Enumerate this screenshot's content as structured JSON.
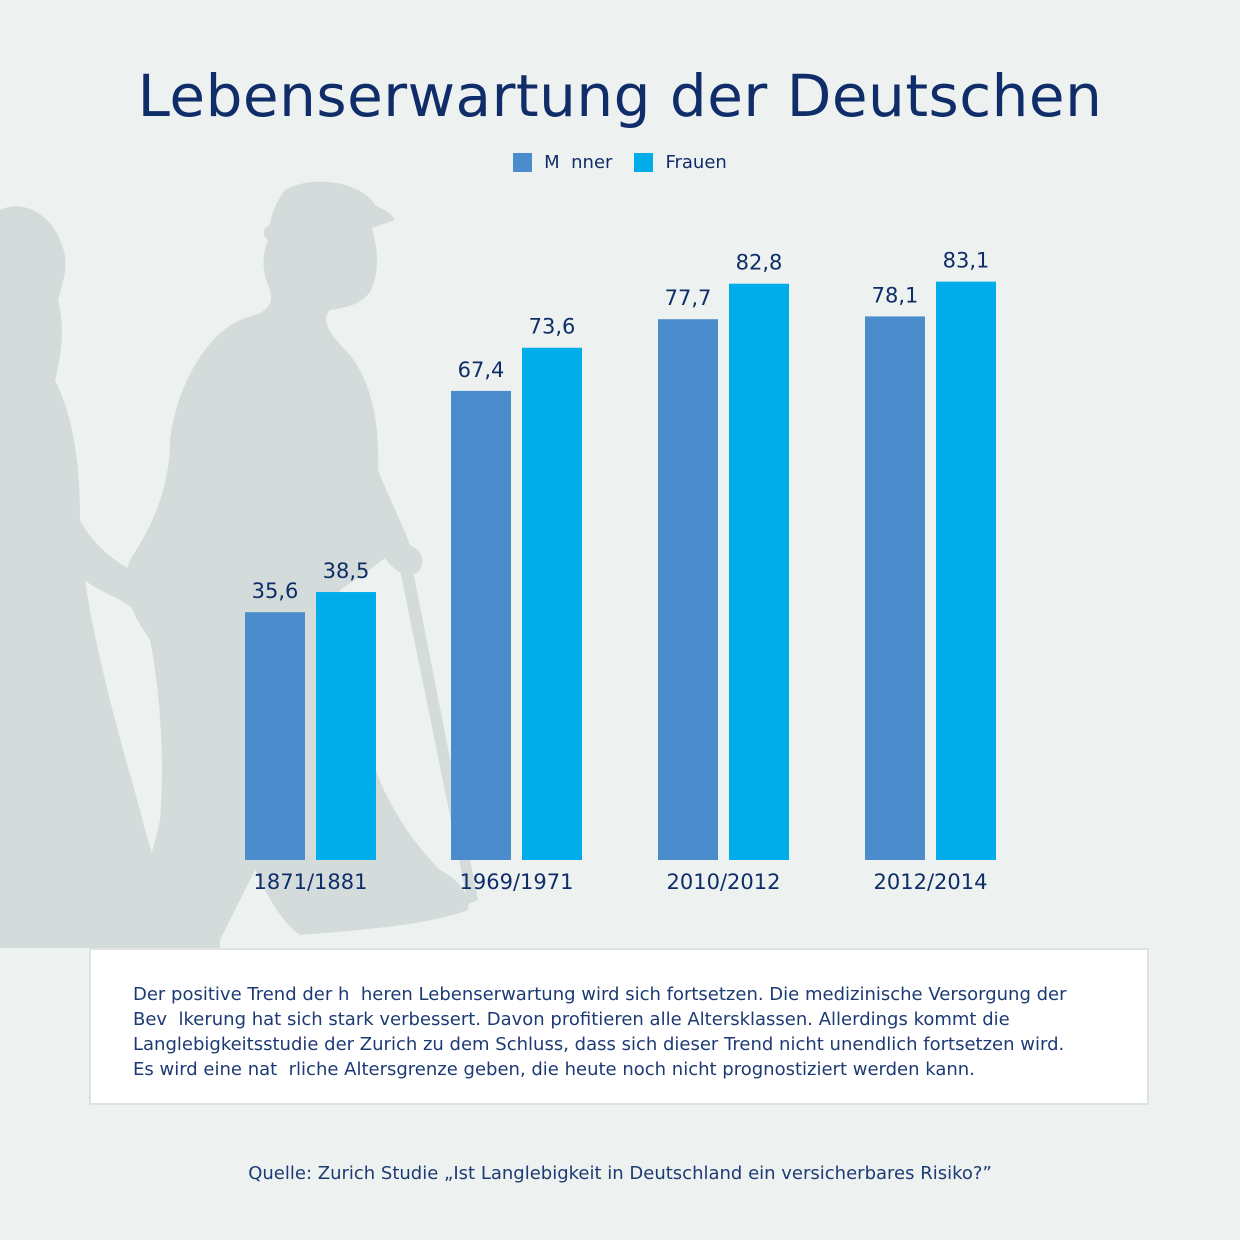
{
  "colors": {
    "men": "#4a8ccc",
    "women": "#00adea",
    "text": "#0f2d69",
    "silhouette": "#d6dede"
  },
  "title": "Lebenserwartung der Deutschen",
  "legend": {
    "men": "M  nner",
    "women": "Frauen"
  },
  "chart_data": {
    "type": "bar",
    "title": "Lebenserwartung der Deutschen",
    "xlabel": "",
    "ylabel": "",
    "ylim": [
      0,
      90
    ],
    "grid": false,
    "legend_position": "top-center",
    "categories": [
      "1871/1881",
      "1969/1971",
      "2010/2012",
      "2012/2014"
    ],
    "series": [
      {
        "name": "M  nner",
        "values": [
          35.6,
          67.4,
          77.7,
          78.1
        ],
        "labels": [
          "35,6",
          "67,4",
          "77,7",
          "78,1"
        ]
      },
      {
        "name": "Frauen",
        "values": [
          38.5,
          73.6,
          82.8,
          83.1
        ],
        "labels": [
          "38,5",
          "73,6",
          "82,8",
          "83,1"
        ]
      }
    ]
  },
  "description": {
    "lines": [
      "Der positive Trend der h  heren Lebenserwartung wird sich fortsetzen. Die medizinische Versorgung der",
      "Bev  lkerung hat sich stark verbessert. Davon profitieren alle Altersklassen. Allerdings kommt die",
      "Langlebigkeitsstudie der Zurich zu dem Schluss, dass sich dieser Trend nicht unendlich fortsetzen wird.",
      "Es wird eine nat  rliche Altersgrenze geben, die heute noch nicht prognostiziert werden kann."
    ]
  },
  "source": "Quelle: Zurich Studie „Ist Langlebigkeit in Deutschland ein versicherbares Risiko?”"
}
